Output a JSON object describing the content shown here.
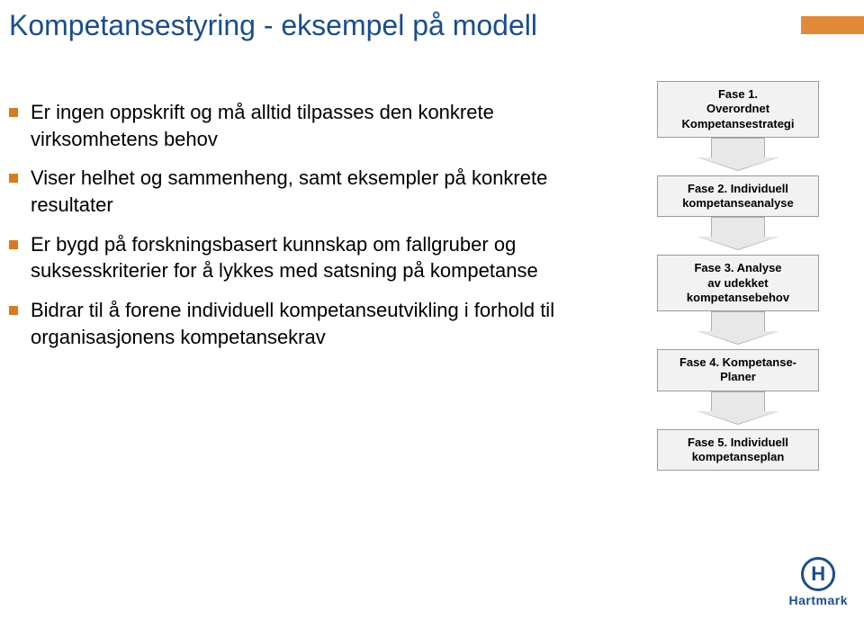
{
  "title_color": "#1a4d8c",
  "bullet_color": "#d87a1e",
  "title": "Kompetansestyring  - eksempel på modell",
  "bullets": [
    "Er ingen oppskrift og må alltid tilpasses den konkrete virksomhetens behov",
    "Viser helhet og sammenheng, samt eksempler på konkrete resultater",
    "Er bygd på forskningsbasert kunnskap om fallgruber og suksesskriterier for å lykkes med satsning på kompetanse",
    "Bidrar til å forene individuell kompetanseutvikling i forhold til organisasjonens kompetansekrav"
  ],
  "phases": [
    {
      "line1": "Fase 1.",
      "line2": "Overordnet",
      "line3": "Kompetansestrategi"
    },
    {
      "line1": "Fase 2. Individuell",
      "line2": "kompetanseanalyse",
      "line3": ""
    },
    {
      "line1": "Fase 3. Analyse",
      "line2": "av udekket",
      "line3": "kompetansebehov"
    },
    {
      "line1": "Fase 4. Kompetanse-",
      "line2": "Planer",
      "line3": ""
    },
    {
      "line1": "Fase 5. Individuell",
      "line2": "kompetanseplan",
      "line3": ""
    }
  ],
  "logo_letter": "H",
  "logo_text": "Hartmark"
}
